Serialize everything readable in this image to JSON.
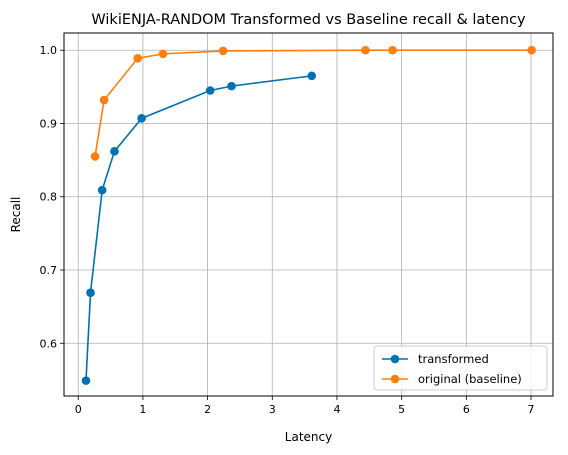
{
  "chart_data": {
    "type": "line",
    "title": "WikiENJA-RANDOM Transformed vs Baseline recall & latency",
    "xlabel": "Latency",
    "ylabel": "Recall",
    "xlim": [
      -0.22,
      7.34
    ],
    "ylim": [
      0.528,
      1.0235
    ],
    "xticks": [
      0,
      1,
      2,
      3,
      4,
      5,
      6,
      7
    ],
    "yticks": [
      0.6,
      0.7,
      0.8,
      0.9,
      1.0
    ],
    "ytick_labels": [
      "0.6",
      "0.7",
      "0.8",
      "0.9",
      "1.0"
    ],
    "grid": true,
    "legend_position": "lower-right",
    "series": [
      {
        "name": "transformed",
        "color": "#0072b2",
        "marker": "circle",
        "points": [
          [
            0.12,
            0.549
          ],
          [
            0.19,
            0.669
          ],
          [
            0.37,
            0.809
          ],
          [
            0.56,
            0.862
          ],
          [
            0.98,
            0.907
          ],
          [
            2.04,
            0.945
          ],
          [
            2.37,
            0.951
          ],
          [
            3.61,
            0.965
          ]
        ]
      },
      {
        "name": "original (baseline)",
        "color": "#ff7f0e",
        "marker": "circle",
        "points": [
          [
            0.26,
            0.855
          ],
          [
            0.4,
            0.932
          ],
          [
            0.92,
            0.989
          ],
          [
            1.31,
            0.995
          ],
          [
            2.24,
            0.999
          ],
          [
            4.44,
            1.0
          ],
          [
            4.86,
            1.0
          ],
          [
            7.01,
            1.0
          ]
        ]
      }
    ]
  }
}
